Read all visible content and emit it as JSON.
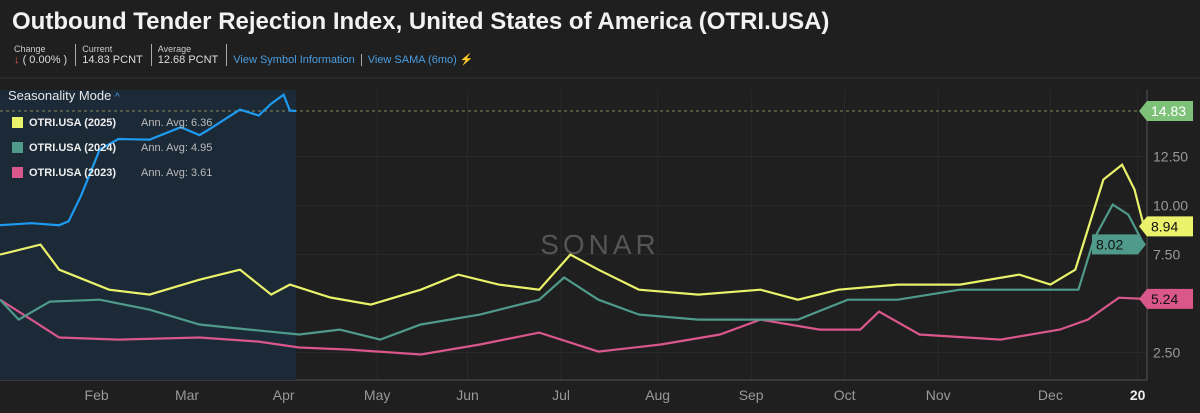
{
  "header": {
    "title": "Outbound Tender Rejection Index, United States of America (OTRI.USA)",
    "change_label": "Change",
    "change_value": "( 0.00% )",
    "current_label": "Current",
    "current_value": "14.83 PCNT",
    "average_label": "Average",
    "average_value": "12.68 PCNT",
    "link_symbol": "View Symbol Information",
    "link_sama": "View SAMA (6mo)"
  },
  "mode": {
    "label": "Seasonality Mode",
    "icon": "chevron-up-icon"
  },
  "watermark": "SONAR",
  "colors": {
    "blue": "#1e9bf0",
    "y2025": "#e9f26a",
    "y2024": "#4f9a8a",
    "y2023": "#d9578a",
    "badge_current": "#7ec27a"
  },
  "chart_data": {
    "type": "line",
    "title": "Outbound Tender Rejection Index, United States of America (OTRI.USA)",
    "x_unit": "day of year",
    "xlim": [
      0,
      368
    ],
    "ylim": [
      1.1,
      15.9
    ],
    "yticks": [
      2.5,
      7.5,
      10.0,
      12.5
    ],
    "ytick_labels": [
      "2.50",
      "7.50",
      "10.00",
      "12.50"
    ],
    "xticks": [
      {
        "day": 31,
        "label": "Feb"
      },
      {
        "day": 60,
        "label": "Mar"
      },
      {
        "day": 91,
        "label": "Apr"
      },
      {
        "day": 121,
        "label": "May"
      },
      {
        "day": 150,
        "label": "Jun"
      },
      {
        "day": 180,
        "label": "Jul"
      },
      {
        "day": 211,
        "label": "Aug"
      },
      {
        "day": 241,
        "label": "Sep"
      },
      {
        "day": 271,
        "label": "Oct"
      },
      {
        "day": 301,
        "label": "Nov"
      },
      {
        "day": 337,
        "label": "Dec"
      },
      {
        "day": 365,
        "label": "20"
      }
    ],
    "current_line": {
      "value": 14.83,
      "label": "14.83"
    },
    "legend": [
      {
        "name": "OTRI.USA (2025)",
        "avg": "Ann. Avg: 6.36",
        "color": "#e9f26a"
      },
      {
        "name": "OTRI.USA (2024)",
        "avg": "Ann. Avg: 4.95",
        "color": "#4f9a8a"
      },
      {
        "name": "OTRI.USA (2023)",
        "avg": "Ann. Avg: 3.61",
        "color": "#d9578a"
      }
    ],
    "series": [
      {
        "name": "current",
        "color": "#1e9bf0",
        "end_label": "",
        "points": [
          [
            0,
            9.0
          ],
          [
            10,
            9.1
          ],
          [
            19,
            9.0
          ],
          [
            22,
            9.2
          ],
          [
            26,
            10.5
          ],
          [
            32,
            12.86
          ],
          [
            38,
            13.4
          ],
          [
            48,
            13.37
          ],
          [
            58,
            14.0
          ],
          [
            64,
            13.6
          ],
          [
            67,
            13.88
          ],
          [
            77,
            14.9
          ],
          [
            83,
            14.6
          ],
          [
            87,
            15.2
          ],
          [
            91,
            15.66
          ],
          [
            93,
            14.85
          ],
          [
            95,
            14.83
          ]
        ]
      },
      {
        "name": "OTRI.USA (2025)",
        "color": "#e9f26a",
        "end_label": "8.94",
        "points": [
          [
            0,
            7.5
          ],
          [
            13,
            8.01
          ],
          [
            19,
            6.73
          ],
          [
            35,
            5.71
          ],
          [
            48,
            5.46
          ],
          [
            64,
            6.22
          ],
          [
            77,
            6.73
          ],
          [
            87,
            5.46
          ],
          [
            93,
            5.97
          ],
          [
            106,
            5.31
          ],
          [
            119,
            4.95
          ],
          [
            135,
            5.71
          ],
          [
            147,
            6.48
          ],
          [
            160,
            5.97
          ],
          [
            173,
            5.71
          ],
          [
            183,
            7.5
          ],
          [
            192,
            6.73
          ],
          [
            205,
            5.71
          ],
          [
            224,
            5.46
          ],
          [
            244,
            5.71
          ],
          [
            256,
            5.2
          ],
          [
            269,
            5.71
          ],
          [
            288,
            5.97
          ],
          [
            308,
            5.97
          ],
          [
            327,
            6.48
          ],
          [
            337,
            5.97
          ],
          [
            345,
            6.73
          ],
          [
            349,
            8.78
          ],
          [
            354,
            11.33
          ],
          [
            360,
            12.09
          ],
          [
            364,
            10.82
          ],
          [
            367,
            8.94
          ]
        ]
      },
      {
        "name": "OTRI.USA (2024)",
        "color": "#4f9a8a",
        "end_label": "8.02",
        "points": [
          [
            0,
            5.2
          ],
          [
            6,
            4.18
          ],
          [
            16,
            5.1
          ],
          [
            32,
            5.2
          ],
          [
            48,
            4.69
          ],
          [
            64,
            3.93
          ],
          [
            80,
            3.67
          ],
          [
            96,
            3.42
          ],
          [
            109,
            3.67
          ],
          [
            122,
            3.16
          ],
          [
            135,
            3.93
          ],
          [
            154,
            4.44
          ],
          [
            173,
            5.2
          ],
          [
            181,
            6.33
          ],
          [
            192,
            5.2
          ],
          [
            205,
            4.44
          ],
          [
            224,
            4.18
          ],
          [
            244,
            4.18
          ],
          [
            256,
            4.18
          ],
          [
            272,
            5.2
          ],
          [
            288,
            5.2
          ],
          [
            308,
            5.71
          ],
          [
            330,
            5.71
          ],
          [
            346,
            5.71
          ],
          [
            351,
            8.3
          ],
          [
            357,
            10.05
          ],
          [
            362,
            9.54
          ],
          [
            367,
            8.02
          ]
        ]
      },
      {
        "name": "OTRI.USA (2023)",
        "color": "#d9578a",
        "end_label": "5.24",
        "points": [
          [
            0,
            5.2
          ],
          [
            10,
            4.18
          ],
          [
            19,
            3.27
          ],
          [
            38,
            3.16
          ],
          [
            64,
            3.27
          ],
          [
            83,
            3.06
          ],
          [
            96,
            2.76
          ],
          [
            112,
            2.65
          ],
          [
            135,
            2.4
          ],
          [
            154,
            2.91
          ],
          [
            173,
            3.52
          ],
          [
            192,
            2.55
          ],
          [
            212,
            2.91
          ],
          [
            231,
            3.42
          ],
          [
            244,
            4.18
          ],
          [
            263,
            3.67
          ],
          [
            276,
            3.67
          ],
          [
            282,
            4.59
          ],
          [
            295,
            3.42
          ],
          [
            321,
            3.16
          ],
          [
            340,
            3.67
          ],
          [
            349,
            4.18
          ],
          [
            359,
            5.3
          ],
          [
            367,
            5.24
          ]
        ]
      }
    ]
  }
}
